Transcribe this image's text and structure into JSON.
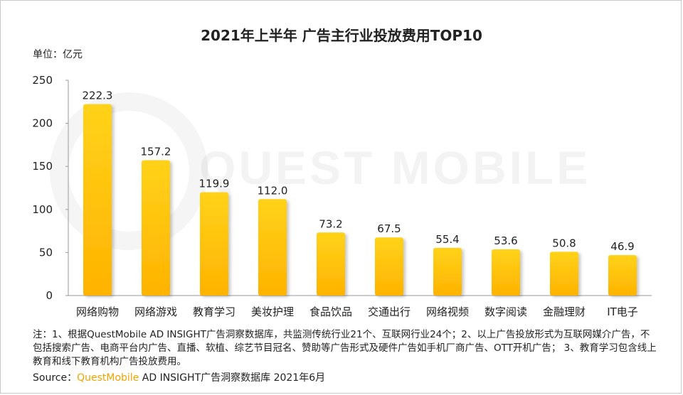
{
  "title": "2021年上半年 广告主行业投放费用TOP10",
  "unit_label": "单位：亿元",
  "watermark": "QUEST MOBILE",
  "chart_data": {
    "type": "bar",
    "title": "2021年上半年 广告主行业投放费用TOP10",
    "ylabel": "单位：亿元",
    "xlabel": "",
    "categories": [
      "网络购物",
      "网络游戏",
      "教育学习",
      "美妆护理",
      "食品饮品",
      "交通出行",
      "网络视频",
      "数字阅读",
      "金融理财",
      "IT电子"
    ],
    "values": [
      222.3,
      157.2,
      119.9,
      112.0,
      73.2,
      67.5,
      55.4,
      53.6,
      50.8,
      46.9
    ],
    "value_labels": [
      "222.3",
      "157.2",
      "119.9",
      "112.0",
      "73.2",
      "67.5",
      "55.4",
      "53.6",
      "50.8",
      "46.9"
    ],
    "ylim": [
      0,
      250
    ],
    "yticks": [
      0,
      50,
      100,
      150,
      200,
      250
    ],
    "grid": false,
    "legend": "none",
    "bar_color_top": "#ffd21a",
    "bar_color_bottom": "#ffb300"
  },
  "notes": "注：1、根据QuestMobile AD INSIGHT广告洞察数据库，共监测传统行业21个、互联网行业24个；2、以上广告投放形式为互联网媒介广告，不包括搜索广告、电商平台内广告、直播、软植、综艺节目冠名、赞助等广告形式及硬件广告如手机厂商广告、OTT开机广告； 3、教育学习包含线上教育和线下教育机构广告投放费用。",
  "source": {
    "prefix": "Source：",
    "brand": "QuestMobile",
    "rest": " AD INSIGHT广告洞察数据库 2021年6月"
  }
}
